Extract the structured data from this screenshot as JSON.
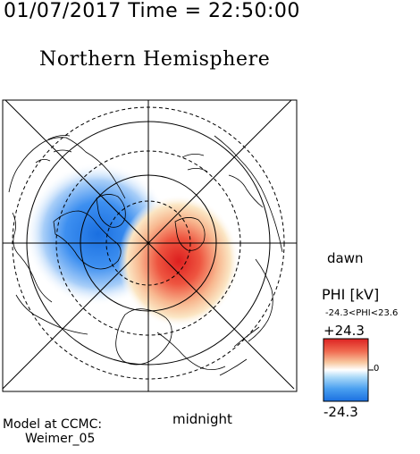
{
  "header": {
    "timestamp": "01/07/2017 Time = 22:50:00",
    "title": "Northern Hemisphere"
  },
  "map": {
    "side_label": "dawn",
    "bottom_label": "midnight"
  },
  "colorbar": {
    "title": "PHI [kV]",
    "range_text": "-24.3<PHI<23.6",
    "max_label": "+24.3",
    "zero_label": "0",
    "min_label": "-24.3",
    "colors": {
      "negative": "#2277ee",
      "neutral": "#ffffff",
      "positive": "#dd2222"
    }
  },
  "footer": {
    "model_line1": "Model at CCMC:",
    "model_line2": "Weimer_05"
  }
}
